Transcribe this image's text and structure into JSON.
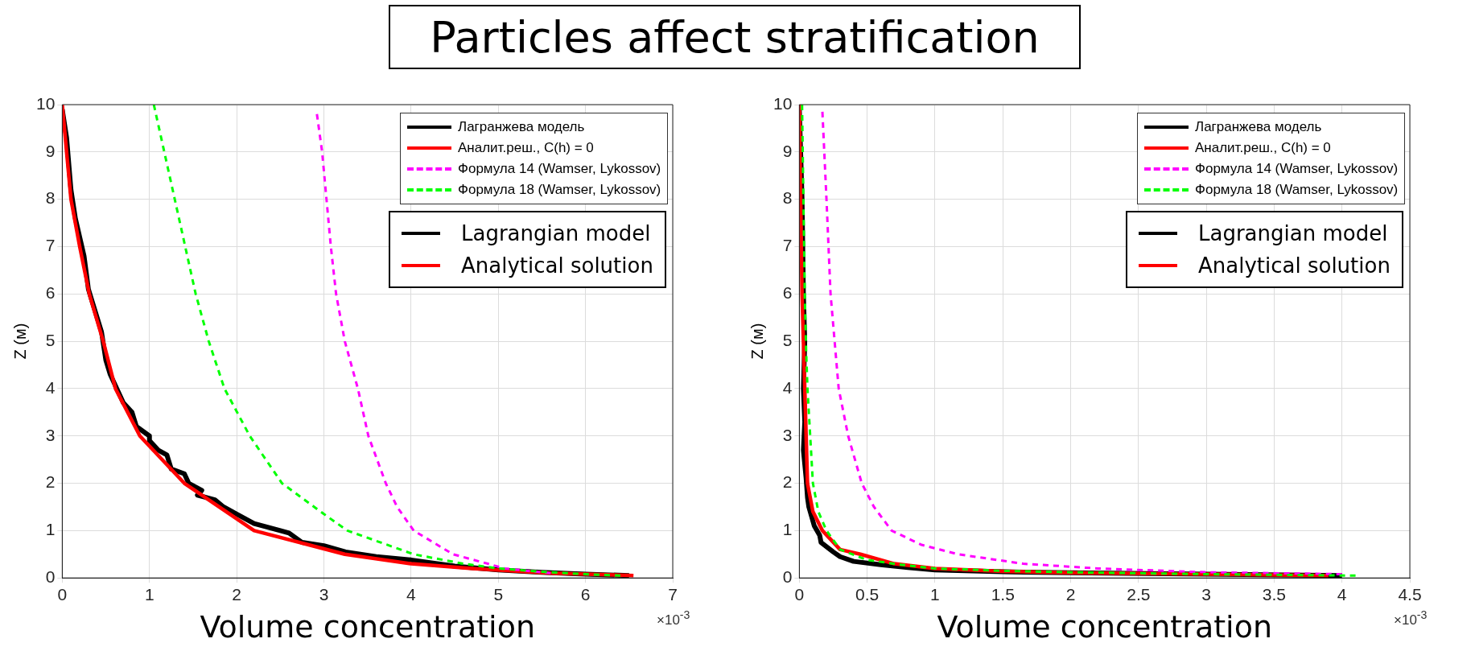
{
  "chart_data": [
    {
      "type": "line",
      "title": "Particles affect stratification",
      "xlabel": "Volume concentration",
      "ylabel": "Z (м)",
      "xlim": [
        0,
        7
      ],
      "xticks": [
        0,
        1,
        2,
        3,
        4,
        5,
        6,
        7
      ],
      "ylim": [
        0,
        10
      ],
      "yticks": [
        0,
        1,
        2,
        3,
        4,
        5,
        6,
        7,
        8,
        9,
        10
      ],
      "grid": true,
      "legend": "top right",
      "annotations": [
        "×10$^{-3}$",
        "Lagrangian model",
        "Analytical solution"
      ],
      "series": [
        {
          "name": "Лагранжева модель",
          "color": "#000000",
          "line_style": "solid",
          "x": [
            0,
            0.05,
            0.1,
            0.15,
            0.25,
            0.3,
            0.35,
            0.45,
            0.5,
            0.55,
            0.7,
            0.8,
            0.85,
            1.0,
            1.0,
            1.1,
            1.2,
            1.25,
            1.4,
            1.45,
            1.6,
            1.55,
            1.75,
            1.85,
            2.0,
            2.2,
            2.5,
            2.6,
            2.75,
            3.0,
            3.25,
            3.6,
            4.0,
            4.5,
            5.0,
            5.5,
            6.0,
            6.5
          ],
          "values": [
            9.9,
            9.3,
            8.2,
            7.6,
            6.8,
            6.1,
            5.8,
            5.2,
            4.6,
            4.3,
            3.7,
            3.5,
            3.2,
            3.0,
            2.9,
            2.7,
            2.6,
            2.3,
            2.2,
            2.0,
            1.85,
            1.75,
            1.65,
            1.5,
            1.35,
            1.15,
            1.0,
            0.95,
            0.75,
            0.68,
            0.55,
            0.45,
            0.38,
            0.25,
            0.17,
            0.12,
            0.08,
            0.05
          ]
        },
        {
          "name": "Аналит.реш., C(h) = 0",
          "color": "#ff0000",
          "line_style": "solid",
          "x": [
            0,
            0.05,
            0.1,
            0.2,
            0.31,
            0.47,
            0.61,
            0.89,
            1.4,
            2.2,
            3.24,
            4.0,
            4.7,
            5.6,
            6.55
          ],
          "values": [
            10,
            9,
            8,
            7,
            6,
            5,
            4,
            3,
            2,
            1,
            0.5,
            0.3,
            0.2,
            0.1,
            0.05
          ]
        },
        {
          "name": "Формула 14 (Wamser, Lykossov)",
          "color": "#ff00ff",
          "line_style": "dashed",
          "x": [
            2.92,
            2.98,
            3.03,
            3.08,
            3.14,
            3.24,
            3.39,
            3.51,
            3.71,
            3.84,
            4.03,
            4.48,
            4.88,
            5.07,
            5.6
          ],
          "values": [
            9.8,
            9,
            8,
            7,
            6,
            5,
            4,
            3,
            2,
            1.5,
            1,
            0.5,
            0.3,
            0.2,
            0.1
          ]
        },
        {
          "name": "Формула 18 (Wamser, Lykossov)",
          "color": "#00ff00",
          "line_style": "dashed",
          "x": [
            1.05,
            1.17,
            1.29,
            1.41,
            1.53,
            1.68,
            1.86,
            2.15,
            2.52,
            3.0,
            3.27,
            4.03,
            4.6,
            5.0,
            5.5,
            6.0,
            6.4
          ],
          "values": [
            10,
            9,
            8,
            7,
            6,
            5,
            4,
            3,
            2,
            1.35,
            1,
            0.5,
            0.3,
            0.2,
            0.13,
            0.08,
            0.05
          ]
        }
      ]
    },
    {
      "type": "line",
      "xlabel": "Volume concentration",
      "ylabel": "Z (м)",
      "xlim": [
        0,
        4.5
      ],
      "xticks": [
        0,
        0.5,
        1,
        1.5,
        2,
        2.5,
        3,
        3.5,
        4,
        4.5
      ],
      "ylim": [
        0,
        10
      ],
      "yticks": [
        0,
        1,
        2,
        3,
        4,
        5,
        6,
        7,
        8,
        9,
        10
      ],
      "grid": true,
      "legend": "top right",
      "annotations": [
        "×10$^{-3}$",
        "Lagrangian model",
        "Analytical solution"
      ],
      "series": [
        {
          "name": "Лагранжева модель",
          "color": "#000000",
          "line_style": "solid",
          "x": [
            0,
            0.02,
            0.03,
            0.04,
            0.03,
            0.04,
            0.03,
            0.05,
            0.06,
            0.07,
            0.11,
            0.15,
            0.16,
            0.25,
            0.3,
            0.4,
            0.6,
            0.8,
            1,
            1.5,
            2,
            3,
            4
          ],
          "values": [
            9.9,
            8,
            6,
            5,
            4,
            3.3,
            2.7,
            2.1,
            1.7,
            1.5,
            1.1,
            0.9,
            0.75,
            0.55,
            0.45,
            0.35,
            0.28,
            0.22,
            0.17,
            0.13,
            0.11,
            0.08,
            0.05
          ]
        },
        {
          "name": "Аналит.реш., C(h) = 0",
          "color": "#ff0000",
          "line_style": "solid",
          "x": [
            0,
            0.01,
            0.02,
            0.03,
            0.04,
            0.05,
            0.06,
            0.1,
            0.17,
            0.3,
            0.45,
            0.7,
            1,
            1.5,
            2,
            3,
            3.9
          ],
          "values": [
            10,
            8,
            6,
            5,
            4,
            3,
            2,
            1.4,
            1,
            0.6,
            0.5,
            0.3,
            0.2,
            0.14,
            0.11,
            0.08,
            0.05
          ]
        },
        {
          "name": "Формула 14 (Wamser, Lykossov)",
          "color": "#ff00ff",
          "line_style": "dashed",
          "x": [
            0.17,
            0.2,
            0.23,
            0.26,
            0.29,
            0.36,
            0.46,
            0.55,
            0.68,
            0.9,
            1.17,
            1.65,
            2.2,
            3,
            4
          ],
          "values": [
            9.85,
            8,
            6,
            5,
            4,
            3,
            2,
            1.5,
            1,
            0.7,
            0.5,
            0.3,
            0.2,
            0.12,
            0.08
          ]
        },
        {
          "name": "Формула 18 (Wamser, Lykossov)",
          "color": "#00ff00",
          "line_style": "dashed",
          "x": [
            0.02,
            0.03,
            0.04,
            0.05,
            0.06,
            0.08,
            0.1,
            0.14,
            0.2,
            0.3,
            0.5,
            0.75,
            1,
            1.5,
            2,
            3,
            4.1
          ],
          "values": [
            10,
            8,
            6,
            4.8,
            4,
            3,
            2,
            1.4,
            1,
            0.6,
            0.38,
            0.28,
            0.2,
            0.15,
            0.12,
            0.08,
            0.05
          ]
        }
      ]
    }
  ]
}
